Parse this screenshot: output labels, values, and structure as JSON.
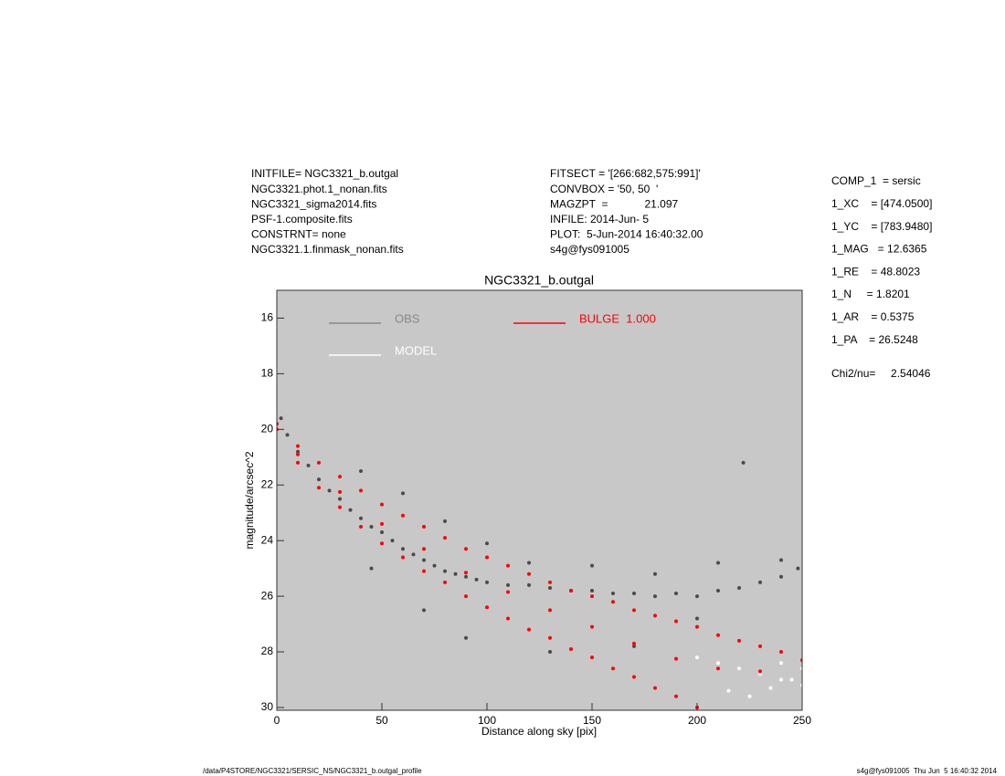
{
  "header": {
    "left": [
      "INITFILE= NGC3321_b.outgal",
      "NGC3321.phot.1_nonan.fits",
      "NGC3321_sigma2014.fits",
      "PSF-1.composite.fits",
      "CONSTRNT= none",
      "NGC3321.1.finmask_nonan.fits"
    ],
    "middle": [
      "FITSECT = '[266:682,575:991]'",
      "CONVBOX = '50, 50  '",
      "MAGZPT  =            21.097",
      "INFILE: 2014-Jun- 5",
      "PLOT:  5-Jun-2014 16:40:32.00",
      "s4g@fys091005"
    ]
  },
  "params": [
    "COMP_1  = sersic",
    "1_XC    = [474.0500]",
    "1_YC    = [783.9480]",
    "1_MAG   = 12.6365",
    "1_RE    = 48.8023",
    "1_N     = 1.8201",
    "1_AR    = 0.5375",
    "1_PA    = 26.5248"
  ],
  "chi2": "Chi2/nu=     2.54046",
  "footer": {
    "left": "/data/P4STORE/NGC3321/SERSIC_NS/NGC3321_b.outgal_profile",
    "right": "s4g@fys091005  Thu Jun  5 16:40:32 2014"
  },
  "chart_data": {
    "type": "scatter",
    "title": "NGC3321_b.outgal",
    "x_label": "Distance along sky [pix]",
    "y_label": "magnitude/arcsec^2",
    "xlim": [
      0,
      250
    ],
    "xticks": [
      0,
      50,
      100,
      150,
      200,
      250
    ],
    "ylim": [
      30.1,
      15
    ],
    "yticks": [
      16,
      18,
      20,
      22,
      24,
      26,
      28,
      30
    ],
    "background": "#c8c8c8",
    "series": [
      {
        "name": "OBS",
        "color": "#4a4a4a",
        "x": [
          2,
          5,
          10,
          15,
          20,
          25,
          30,
          35,
          40,
          45,
          50,
          55,
          60,
          65,
          70,
          75,
          80,
          85,
          90,
          95,
          100,
          110,
          120,
          130,
          140,
          150,
          160,
          170,
          180,
          190,
          200,
          210,
          220,
          230,
          240,
          248,
          40,
          60,
          80,
          100,
          120,
          150,
          180,
          210,
          240,
          222,
          45,
          70,
          90,
          130,
          170,
          200
        ],
        "values": [
          19.6,
          20.2,
          20.8,
          21.3,
          21.8,
          22.2,
          22.5,
          22.9,
          23.2,
          23.5,
          23.7,
          24.0,
          24.3,
          24.5,
          24.7,
          24.9,
          25.1,
          25.2,
          25.3,
          25.4,
          25.5,
          25.6,
          25.6,
          25.7,
          25.8,
          25.8,
          25.9,
          25.9,
          26.0,
          25.9,
          26.0,
          25.8,
          25.7,
          25.5,
          25.3,
          25.0,
          21.5,
          22.3,
          23.3,
          24.1,
          24.8,
          24.9,
          25.2,
          24.8,
          24.7,
          21.2,
          25.0,
          26.5,
          27.5,
          28.0,
          27.8,
          26.8
        ]
      },
      {
        "name": "MODEL",
        "color": "#ffffff",
        "x": [
          200,
          210,
          220,
          230,
          240,
          250,
          215,
          225,
          235,
          245,
          250,
          240
        ],
        "values": [
          28.2,
          28.4,
          28.6,
          28.8,
          29.0,
          29.2,
          29.4,
          29.6,
          29.3,
          29.0,
          28.6,
          28.4
        ]
      },
      {
        "name": "BULGE  1.000",
        "color": "#ff0000",
        "x": [
          0,
          10,
          20,
          30,
          40,
          50,
          60,
          70,
          80,
          90,
          100,
          110,
          120,
          130,
          140,
          150,
          160,
          170,
          180,
          190,
          200,
          210,
          220,
          230,
          240,
          250,
          0,
          10,
          20,
          30,
          40,
          50,
          60,
          70,
          80,
          90,
          100,
          110,
          120,
          130,
          140,
          150,
          160,
          170,
          180,
          190,
          200,
          10,
          30,
          50,
          70,
          90,
          110,
          130,
          150,
          170,
          190,
          210,
          230
        ],
        "values": [
          19.8,
          20.6,
          21.2,
          21.7,
          22.2,
          22.7,
          23.1,
          23.5,
          23.9,
          24.3,
          24.6,
          24.9,
          25.2,
          25.5,
          25.8,
          26.0,
          26.2,
          26.5,
          26.7,
          26.9,
          27.1,
          27.4,
          27.6,
          27.8,
          28.0,
          28.3,
          20.0,
          21.2,
          22.1,
          22.8,
          23.5,
          24.1,
          24.6,
          25.1,
          25.5,
          26.0,
          26.4,
          26.8,
          27.2,
          27.5,
          27.9,
          28.2,
          28.6,
          28.9,
          29.3,
          29.6,
          30.0,
          20.9,
          22.25,
          23.4,
          24.3,
          25.15,
          25.85,
          26.5,
          27.1,
          27.7,
          28.25,
          28.6,
          28.7
        ]
      }
    ]
  }
}
